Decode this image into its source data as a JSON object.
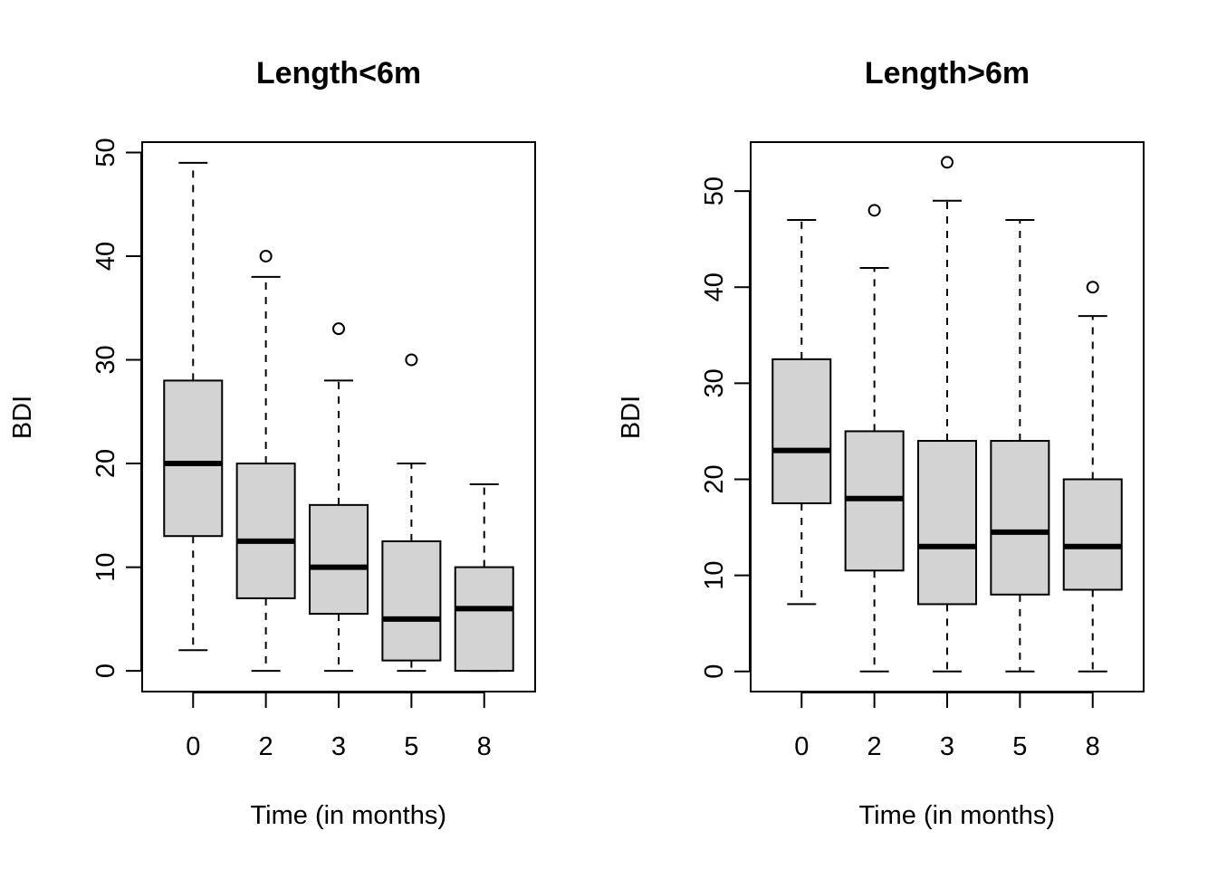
{
  "colors": {
    "box_fill": "#d3d3d3",
    "ink": "#000000"
  },
  "chart_data": [
    {
      "type": "boxplot",
      "title": "Length<6m",
      "xlabel": "Time (in months)",
      "ylabel": "BDI",
      "ylim": [
        -2,
        51
      ],
      "yticks": [
        "0",
        "10",
        "20",
        "30",
        "40",
        "50"
      ],
      "categories": [
        "0",
        "2",
        "3",
        "5",
        "8"
      ],
      "boxes": [
        {
          "min": 2,
          "q1": 13,
          "median": 20,
          "q3": 28,
          "max": 49,
          "outliers": []
        },
        {
          "min": 0,
          "q1": 7,
          "median": 12.5,
          "q3": 20,
          "max": 38,
          "outliers": [
            40
          ]
        },
        {
          "min": 0,
          "q1": 5.5,
          "median": 10,
          "q3": 16,
          "max": 28,
          "outliers": [
            33
          ]
        },
        {
          "min": 0,
          "q1": 1,
          "median": 5,
          "q3": 12.5,
          "max": 20,
          "outliers": [
            30
          ]
        },
        {
          "min": 0,
          "q1": 0,
          "median": 6,
          "q3": 10,
          "max": 18,
          "outliers": []
        }
      ]
    },
    {
      "type": "boxplot",
      "title": "Length>6m",
      "xlabel": "Time (in months)",
      "ylabel": "BDI",
      "ylim": [
        -2.1,
        55.1
      ],
      "yticks": [
        "0",
        "10",
        "20",
        "30",
        "40",
        "50"
      ],
      "categories": [
        "0",
        "2",
        "3",
        "5",
        "8"
      ],
      "boxes": [
        {
          "min": 7,
          "q1": 17.5,
          "median": 23,
          "q3": 32.5,
          "max": 47,
          "outliers": []
        },
        {
          "min": 0,
          "q1": 10.5,
          "median": 18,
          "q3": 25,
          "max": 42,
          "outliers": [
            48
          ]
        },
        {
          "min": 0,
          "q1": 7,
          "median": 13,
          "q3": 24,
          "max": 49,
          "outliers": [
            53
          ]
        },
        {
          "min": 0,
          "q1": 8,
          "median": 14.5,
          "q3": 24,
          "max": 47,
          "outliers": []
        },
        {
          "min": 0,
          "q1": 8.5,
          "median": 13,
          "q3": 20,
          "max": 37,
          "outliers": [
            40
          ]
        }
      ]
    }
  ]
}
